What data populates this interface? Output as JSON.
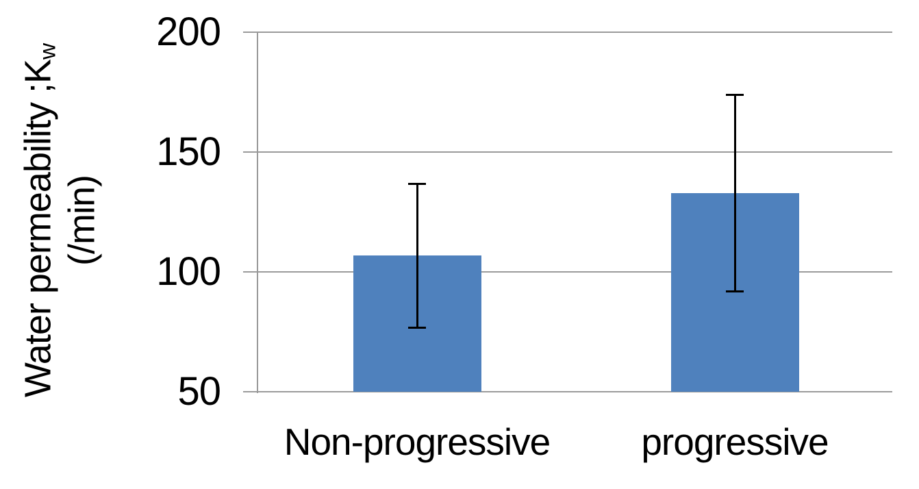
{
  "chart_data": {
    "type": "bar",
    "title": "",
    "categories": [
      "Non-progressive",
      "progressive"
    ],
    "values": [
      107,
      133
    ],
    "error_plus": [
      30,
      41
    ],
    "error_minus": [
      30,
      41
    ],
    "ylabel_line1_main": "Water permeability ;K",
    "ylabel_line1_subscript": "w",
    "ylabel_line2": "(/min)",
    "yticks": [
      50,
      100,
      150,
      200
    ],
    "ylim": [
      50,
      200
    ],
    "xlabel": "",
    "grid": true,
    "legend": "none",
    "bar_color": "#4F81BD",
    "gridline_color": "#9A9A9A",
    "axis_line_color": "#9A9A9A",
    "error_bar_color": "#000000",
    "text_color": "#000000"
  }
}
